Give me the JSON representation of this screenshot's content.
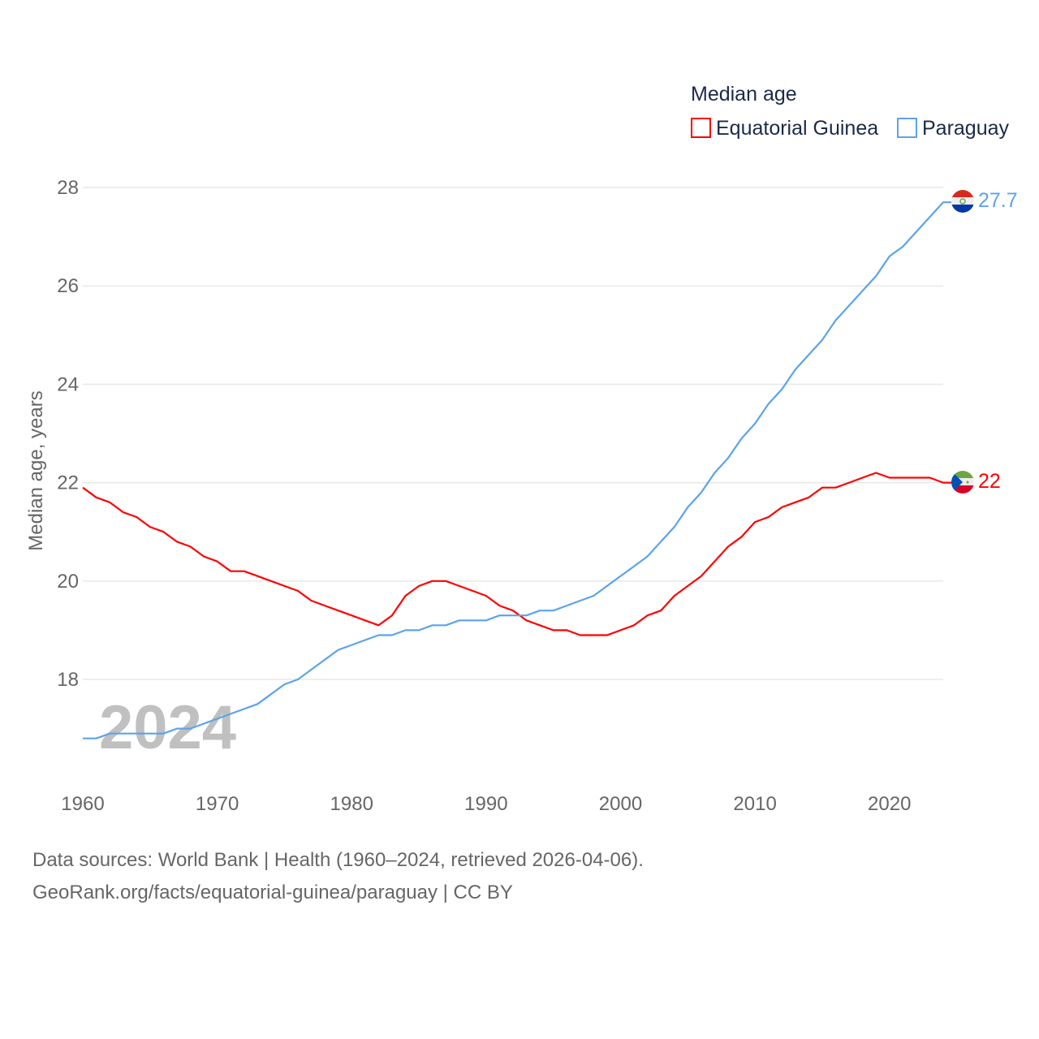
{
  "chart_data": {
    "type": "line",
    "title": "Median age",
    "ylabel": "Median age, years",
    "xlabel": "",
    "xlim": [
      1960,
      2024
    ],
    "ylim": [
      16.3,
      28.3
    ],
    "x_ticks": [
      1960,
      1970,
      1980,
      1990,
      2000,
      2010,
      2020
    ],
    "y_ticks": [
      18,
      20,
      22,
      24,
      26,
      28
    ],
    "grid": true,
    "legend_position": "top-right",
    "year_watermark": "2024",
    "x": [
      1960,
      1961,
      1962,
      1963,
      1964,
      1965,
      1966,
      1967,
      1968,
      1969,
      1970,
      1971,
      1972,
      1973,
      1974,
      1975,
      1976,
      1977,
      1978,
      1979,
      1980,
      1981,
      1982,
      1983,
      1984,
      1985,
      1986,
      1987,
      1988,
      1989,
      1990,
      1991,
      1992,
      1993,
      1994,
      1995,
      1996,
      1997,
      1998,
      1999,
      2000,
      2001,
      2002,
      2003,
      2004,
      2005,
      2006,
      2007,
      2008,
      2009,
      2010,
      2011,
      2012,
      2013,
      2014,
      2015,
      2016,
      2017,
      2018,
      2019,
      2020,
      2021,
      2022,
      2023,
      2024
    ],
    "series": [
      {
        "name": "Equatorial Guinea",
        "color": "#ff0000",
        "end_label": "22",
        "values": [
          21.9,
          21.7,
          21.6,
          21.4,
          21.3,
          21.1,
          21.0,
          20.8,
          20.7,
          20.5,
          20.4,
          20.2,
          20.2,
          20.1,
          20.0,
          19.9,
          19.8,
          19.6,
          19.5,
          19.4,
          19.3,
          19.2,
          19.1,
          19.3,
          19.7,
          19.9,
          20.0,
          20.0,
          19.9,
          19.8,
          19.7,
          19.5,
          19.4,
          19.2,
          19.1,
          19.0,
          19.0,
          18.9,
          18.9,
          18.9,
          19.0,
          19.1,
          19.3,
          19.4,
          19.7,
          19.9,
          20.1,
          20.4,
          20.7,
          20.9,
          21.2,
          21.3,
          21.5,
          21.6,
          21.7,
          21.9,
          21.9,
          22.0,
          22.1,
          22.2,
          22.1,
          22.1,
          22.1,
          22.1,
          22.0
        ]
      },
      {
        "name": "Paraguay",
        "color": "#5ba3ec",
        "end_label": "27.7",
        "values": [
          16.8,
          16.8,
          16.9,
          16.9,
          16.9,
          16.9,
          16.9,
          17.0,
          17.0,
          17.1,
          17.2,
          17.3,
          17.4,
          17.5,
          17.7,
          17.9,
          18.0,
          18.2,
          18.4,
          18.6,
          18.7,
          18.8,
          18.9,
          18.9,
          19.0,
          19.0,
          19.1,
          19.1,
          19.2,
          19.2,
          19.2,
          19.3,
          19.3,
          19.3,
          19.4,
          19.4,
          19.5,
          19.6,
          19.7,
          19.9,
          20.1,
          20.3,
          20.5,
          20.8,
          21.1,
          21.5,
          21.8,
          22.2,
          22.5,
          22.9,
          23.2,
          23.6,
          23.9,
          24.3,
          24.6,
          24.9,
          25.3,
          25.6,
          25.9,
          26.2,
          26.6,
          26.8,
          27.1,
          27.4,
          27.7
        ]
      }
    ]
  },
  "sources": {
    "line1": "Data sources: World Bank | Health (1960–2024, retrieved 2026-04-06).",
    "line2": "GeoRank.org/facts/equatorial-guinea/paraguay | CC BY"
  }
}
